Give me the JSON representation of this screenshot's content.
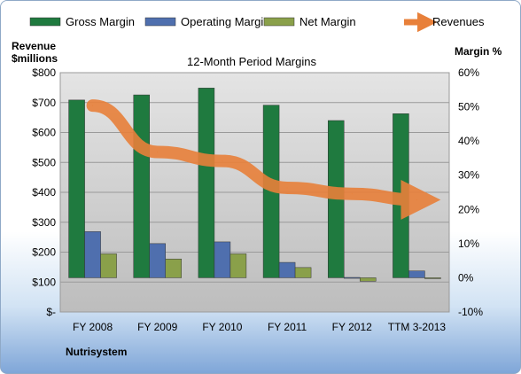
{
  "chart_data": {
    "type": "bar",
    "title": "12-Month Period Margins",
    "company": "Nutrisystem",
    "left_axis_label_line1": "Revenue",
    "left_axis_label_line2": "$millions",
    "right_axis_label": "Margin %",
    "categories": [
      "FY 2008",
      "FY 2009",
      "FY 2010",
      "FY 2011",
      "FY 2012",
      "TTM 3-2013"
    ],
    "left_ticks": [
      "$-",
      "$100",
      "$200",
      "$300",
      "$400",
      "$500",
      "$600",
      "$700",
      "$800"
    ],
    "right_ticks": [
      "-10%",
      "0%",
      "10%",
      "20%",
      "30%",
      "40%",
      "50%",
      "60%"
    ],
    "left_ylim": [
      0,
      800
    ],
    "right_ylim": [
      -10,
      60
    ],
    "grid": true,
    "legend_placement": "top",
    "series": [
      {
        "name": "Gross Margin",
        "axis": "right",
        "color": "#1f7a3f",
        "values": [
          52,
          53.5,
          55.5,
          50.5,
          46,
          48
        ]
      },
      {
        "name": "Operating Margin",
        "axis": "right",
        "color": "#4f6fae",
        "values": [
          13.5,
          10,
          10.5,
          4.5,
          0.1,
          2
        ]
      },
      {
        "name": "Net Margin",
        "axis": "right",
        "color": "#8aa04a",
        "values": [
          7,
          5.5,
          7,
          3,
          -1,
          0
        ]
      },
      {
        "name": "Revenues",
        "axis": "left",
        "color": "#e8803a",
        "values": [
          690,
          535,
          505,
          415,
          395,
          375
        ]
      }
    ]
  }
}
